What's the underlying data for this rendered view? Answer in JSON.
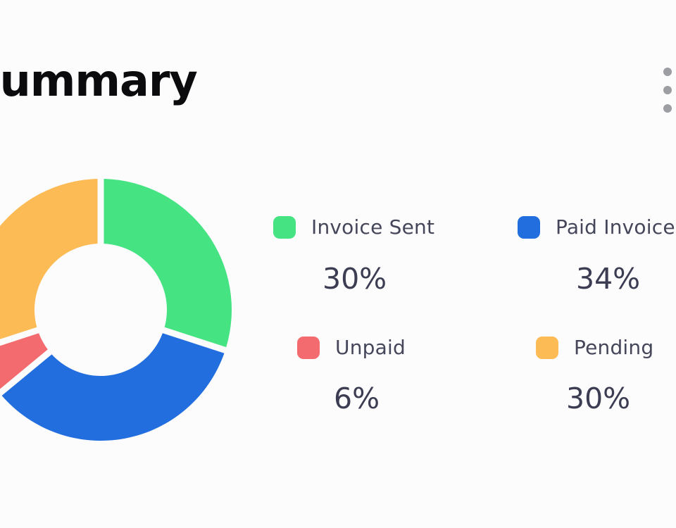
{
  "header": {
    "title": "Summary",
    "menu_icon": "more-vertical-icon"
  },
  "colors": {
    "invoice_sent": "#46e383",
    "paid_invoice": "#226ede",
    "unpaid": "#f36b6e",
    "pending": "#fdbb56"
  },
  "chart_data": {
    "type": "pie",
    "categories": [
      "Invoice Sent",
      "Paid Invoice",
      "Unpaid",
      "Pending"
    ],
    "values": [
      30,
      34,
      6,
      30
    ],
    "value_labels": [
      "30%",
      "34%",
      "6%",
      "30%"
    ],
    "colors": [
      "#46e383",
      "#226ede",
      "#f36b6e",
      "#fdbb56"
    ],
    "donut": true,
    "start_angle_deg": 0,
    "direction": "clockwise",
    "legend": "right"
  }
}
